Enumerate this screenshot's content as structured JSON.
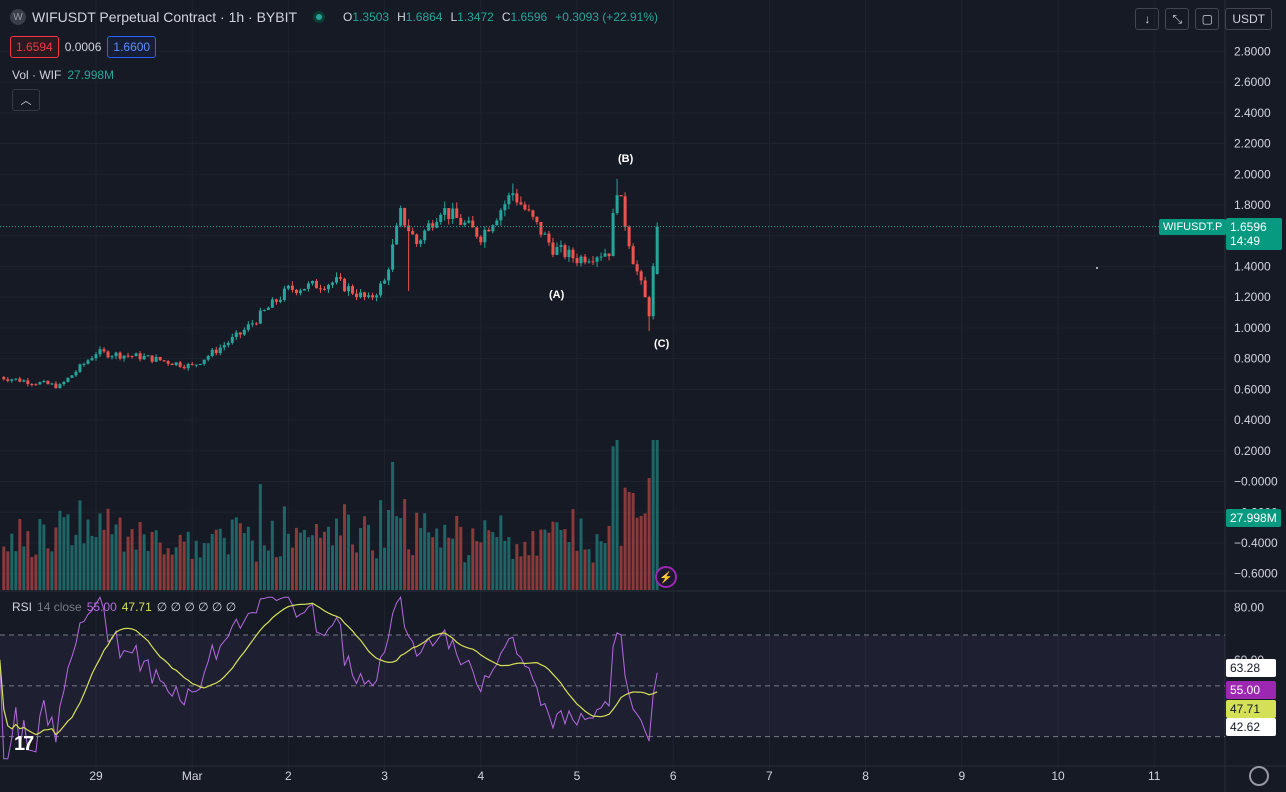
{
  "header": {
    "symbol_title": "WIFUSDT Perpetual Contract · 1h · BYBIT",
    "icon": "wif-coin-icon",
    "ohlc": [
      {
        "label": "O",
        "value": "1.3503"
      },
      {
        "label": "H",
        "value": "1.6864"
      },
      {
        "label": "L",
        "value": "1.3472"
      },
      {
        "label": "C",
        "value": "1.6596"
      }
    ],
    "change": "+0.3093 (+22.91%)",
    "sell_price": "1.6594",
    "spread": "0.0006",
    "buy_price": "1.6600"
  },
  "toolbar": {
    "currency": "USDT",
    "icons": [
      "arrow-down-icon",
      "compress-icon",
      "fullscreen-icon"
    ]
  },
  "volume_legend": {
    "label": "Vol · WIF",
    "value": "27.998M"
  },
  "rsi_legend": {
    "label": "RSI",
    "params": "14 close",
    "rsi_value": "55.00",
    "ma_value": "47.71",
    "extra": "∅ ∅ ∅ ∅ ∅ ∅"
  },
  "tags": {
    "last_price": "1.6596",
    "countdown": "14:49",
    "symbol": "WIFUSDT.P",
    "volume": "27.998M",
    "rsi_upper": "63.28",
    "rsi_value": "55.00",
    "rsi_ma": "47.71",
    "rsi_lower": "42.62"
  },
  "wave_labels": {
    "a": "(A)",
    "b": "(B)",
    "c": "(C)"
  },
  "logo_text": "17",
  "colors": {
    "background": "#161a25",
    "up": "#26a69a",
    "down": "#ef5350",
    "rsi_line": "#b46ae0",
    "rsi_ma": "#d4e157",
    "rsi_band": "#7e57c2"
  },
  "chart_data": [
    {
      "type": "candlestick",
      "title": "WIFUSDT Perpetual Contract · 1h · BYBIT",
      "y_ticks": [
        "2.8000",
        "2.6000",
        "2.4000",
        "2.2000",
        "2.0000",
        "1.8000",
        "1.6000",
        "1.4000",
        "1.2000",
        "1.0000",
        "0.8000",
        "0.6000",
        "0.4000",
        "0.2000",
        "−0.0000",
        "−0.2000",
        "−0.4000",
        "−0.6000"
      ],
      "ylim": [
        -0.68,
        2.9
      ],
      "x_ticks": [
        "29",
        "Mar",
        "2",
        "3",
        "4",
        "5",
        "6",
        "7",
        "8",
        "9",
        "10",
        "11"
      ],
      "last_price": 1.6596,
      "anchors": [
        {
          "x": "Feb 28 00:00",
          "close": 0.68
        },
        {
          "x": "Feb 28 15:00",
          "close": 0.62
        },
        {
          "x": "Feb 29 00:00",
          "close": 0.84
        },
        {
          "x": "Feb 29 12:00",
          "close": 0.81
        },
        {
          "x": "Mar 1 00:00",
          "close": 0.75
        },
        {
          "x": "Mar 1 12:00",
          "close": 0.96
        },
        {
          "x": "Mar 2 00:00",
          "close": 1.25
        },
        {
          "x": "Mar 2 12:00",
          "close": 1.3
        },
        {
          "x": "Mar 2 20:00",
          "close": 1.18
        },
        {
          "x": "Mar 3 00:00",
          "close": 1.3
        },
        {
          "x": "Mar 3 04:00",
          "close": 1.74
        },
        {
          "x": "Mar 3 08:00",
          "close": 1.55
        },
        {
          "x": "Mar 3 14:00",
          "close": 1.78
        },
        {
          "x": "Mar 4 00:00",
          "close": 1.6
        },
        {
          "x": "Mar 4 08:00",
          "close": 1.88
        },
        {
          "x": "Mar 4 18:00",
          "close": 1.52
        },
        {
          "x": "Mar 5 00:00",
          "close": 1.45
        },
        {
          "x": "Mar 5 08:00",
          "close": 1.5
        },
        {
          "x": "Mar 5 10:00",
          "close": 1.92
        },
        {
          "x": "Mar 5 14:00",
          "close": 1.45
        },
        {
          "x": "Mar 5 18:00",
          "close": 1.1
        },
        {
          "x": "Mar 5 20:00",
          "close": 1.6596
        }
      ]
    },
    {
      "type": "bar",
      "title": "Vol · WIF",
      "last_value": "27.998M",
      "peak_at": "Mar 5 10:00"
    },
    {
      "type": "line",
      "title": "RSI 14 close",
      "y_ticks": [
        "80.00",
        "60.00"
      ],
      "ylim": [
        20,
        86
      ],
      "band": [
        63.28,
        42.62
      ],
      "rsi_last": 55.0,
      "ma_last": 47.71
    }
  ]
}
